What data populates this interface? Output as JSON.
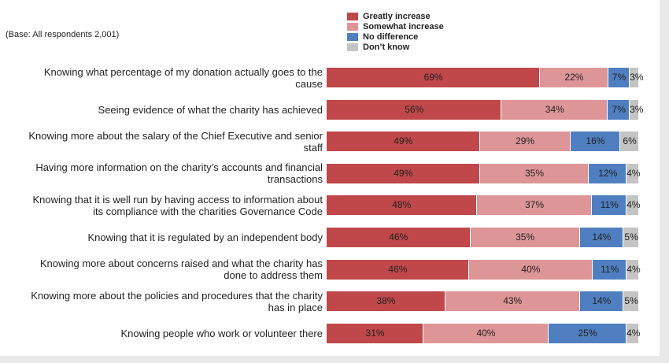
{
  "base_note": "(Base: All respondents 2,001)",
  "chart_data": {
    "type": "bar",
    "orientation": "horizontal",
    "stacked": true,
    "percent": true,
    "categories": [
      [
        "Knowing what percentage of my donation actually goes to the",
        "cause"
      ],
      [
        "Seeing evidence of what the charity has achieved"
      ],
      [
        "Knowing more about the salary of the Chief Executive and senior",
        "staff"
      ],
      [
        "Having more information on the charity’s accounts and financial",
        "transactions"
      ],
      [
        "Knowing that it is well run by having access to information about",
        "its compliance with the charities Governance Code"
      ],
      [
        "Knowing that it is regulated by an independent  body"
      ],
      [
        "Knowing more about concerns raised and what the charity has",
        "done to address them"
      ],
      [
        "Knowing more about the policies and procedures that the charity",
        "has in place"
      ],
      [
        "Knowing people who work or volunteer there"
      ]
    ],
    "series": [
      {
        "name": "Greatly increase",
        "color": "#c0474a",
        "values": [
          69,
          56,
          49,
          49,
          48,
          46,
          46,
          38,
          31
        ]
      },
      {
        "name": "Somewhat increase",
        "color": "#de9597",
        "values": [
          22,
          34,
          29,
          35,
          37,
          35,
          40,
          43,
          40
        ]
      },
      {
        "name": "No difference",
        "color": "#4f7fc0",
        "values": [
          7,
          7,
          16,
          12,
          11,
          14,
          11,
          14,
          25
        ]
      },
      {
        "name": "Don’t know",
        "color": "#c4c4c4",
        "values": [
          3,
          3,
          6,
          4,
          4,
          5,
          4,
          5,
          4
        ]
      }
    ],
    "value_suffix": "%",
    "legend_position": "top-right",
    "xlim": [
      0,
      100
    ],
    "grid": false
  }
}
